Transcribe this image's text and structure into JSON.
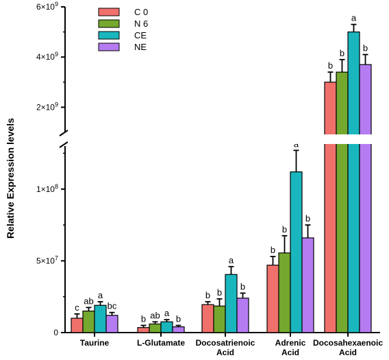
{
  "chart_data": {
    "type": "bar",
    "ylabel": "Relative Expression levels",
    "axis_break": true,
    "categories": [
      [
        "Taurine"
      ],
      [
        "L-Glutamate"
      ],
      [
        "Docosatrienoic",
        "Acid"
      ],
      [
        "Adrenic",
        "Acid"
      ],
      [
        "Docosahexaenoic",
        "Acid"
      ]
    ],
    "y_ticks": {
      "lower": [
        {
          "value": 0,
          "label_parts": [
            "0"
          ]
        },
        {
          "value": 50000000,
          "label_parts": [
            "5×10",
            "7"
          ]
        },
        {
          "value": 100000000,
          "label_parts": [
            "1×10",
            "8"
          ]
        }
      ],
      "upper": [
        {
          "value": 2000000000,
          "label_parts": [
            "2×10",
            "9"
          ]
        },
        {
          "value": 4000000000,
          "label_parts": [
            "4×10",
            "9"
          ]
        },
        {
          "value": 6000000000,
          "label_parts": [
            "6×10",
            "9"
          ]
        }
      ]
    },
    "y_range_lower": [
      0,
      130000000
    ],
    "y_range_upper": [
      1000000000,
      6000000000
    ],
    "series": [
      {
        "name": "C 0",
        "color": "#f0716c",
        "values": [
          10000000,
          3500000,
          19500000,
          47000000,
          3000000000
        ],
        "errors": [
          3000000,
          1500000,
          2000000,
          6000000,
          400000000
        ],
        "letters": [
          "c",
          "b",
          "b",
          "b",
          "b"
        ]
      },
      {
        "name": "N 6",
        "color": "#74a82e",
        "values": [
          15000000,
          6000000,
          18500000,
          55500000,
          3400000000
        ],
        "errors": [
          2500000,
          1500000,
          5000000,
          12000000,
          500000000
        ],
        "letters": [
          "ab",
          "ab",
          "b",
          "b",
          "b"
        ]
      },
      {
        "name": "CE",
        "color": "#1ab6be",
        "values": [
          19000000,
          7500000,
          40500000,
          112000000,
          5000000000
        ],
        "errors": [
          2500000,
          1500000,
          5500000,
          15000000,
          300000000
        ],
        "letters": [
          "a",
          "a",
          "a",
          "a",
          "a"
        ]
      },
      {
        "name": "NE",
        "color": "#b57cf2",
        "values": [
          12000000,
          4000000,
          24000000,
          66000000,
          3700000000
        ],
        "errors": [
          2000000,
          1000000,
          3500000,
          9000000,
          400000000
        ],
        "letters": [
          "bc",
          "b",
          "b",
          "b",
          "b"
        ]
      }
    ]
  }
}
